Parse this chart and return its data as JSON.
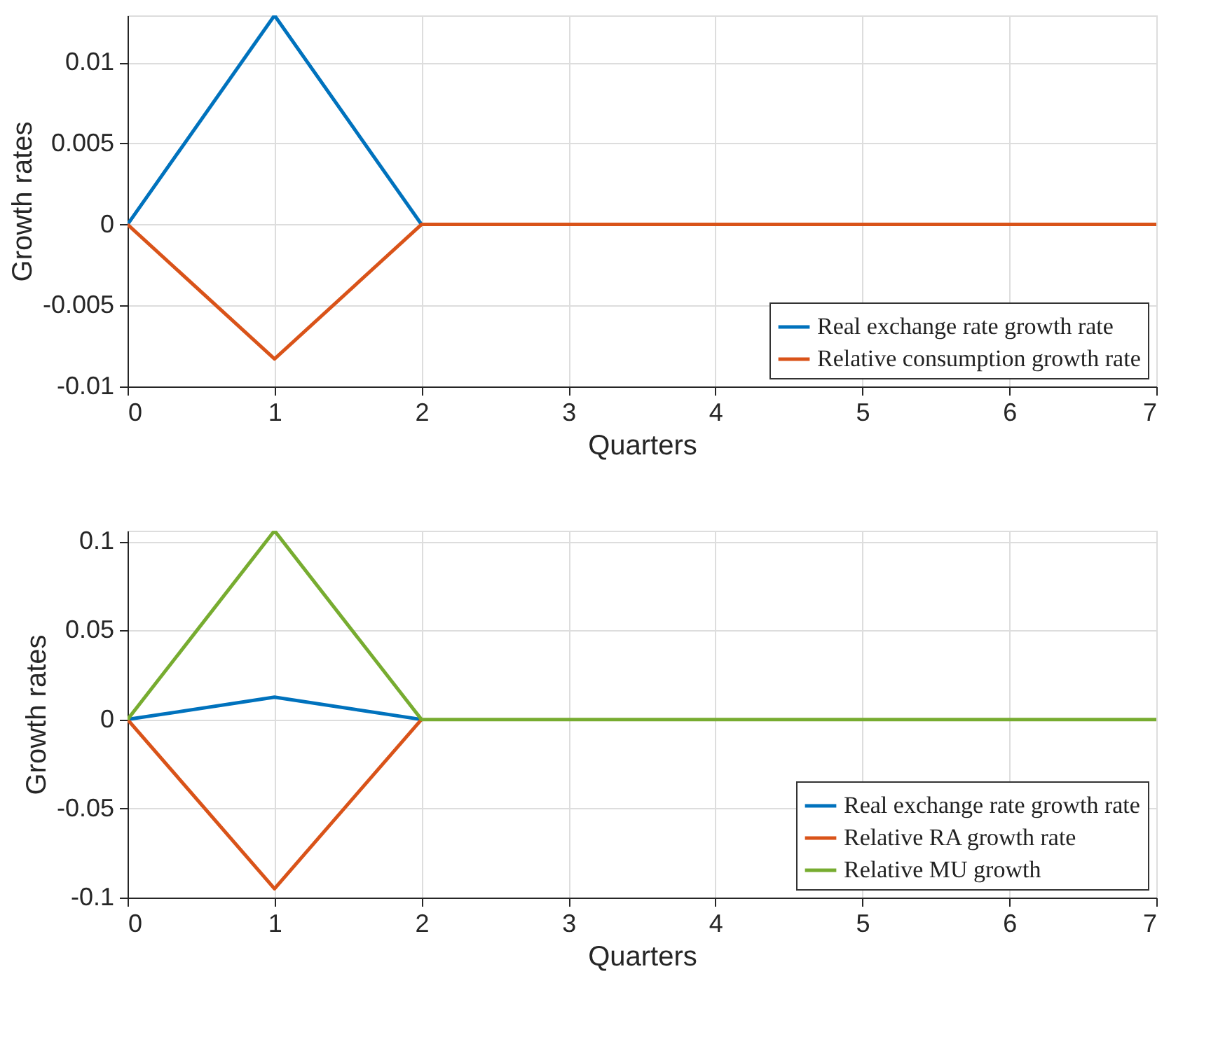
{
  "chart_data": [
    {
      "type": "line",
      "xlabel": "Quarters",
      "ylabel": "Growth rates",
      "x": [
        0,
        1,
        2,
        3,
        4,
        5,
        6,
        7
      ],
      "xlim": [
        0,
        7
      ],
      "xticks": [
        0,
        1,
        2,
        3,
        4,
        5,
        6,
        7
      ],
      "ylim": [
        -0.01,
        0.0129
      ],
      "yticks": [
        -0.01,
        -0.005,
        0,
        0.005,
        0.01
      ],
      "grid": true,
      "legend": "bottom right",
      "line_style": "solid",
      "series": [
        {
          "name": "Real exchange rate growth rate",
          "color": "#0072bd",
          "values": [
            0,
            0.0129,
            0,
            null,
            null,
            null,
            null,
            null
          ]
        },
        {
          "name": "Relative consumption growth rate",
          "color": "#d95319",
          "values": [
            0,
            -0.0083,
            0,
            0,
            0,
            0,
            0,
            0
          ]
        }
      ]
    },
    {
      "type": "line",
      "xlabel": "Quarters",
      "ylabel": "Growth rates",
      "x": [
        0,
        1,
        2,
        3,
        4,
        5,
        6,
        7
      ],
      "xlim": [
        0,
        7
      ],
      "xticks": [
        0,
        1,
        2,
        3,
        4,
        5,
        6,
        7
      ],
      "ylim": [
        -0.1,
        0.106
      ],
      "yticks": [
        -0.1,
        -0.05,
        0,
        0.05,
        0.1
      ],
      "grid": true,
      "legend": "bottom right",
      "line_style": "solid",
      "series": [
        {
          "name": "Real exchange rate growth rate",
          "color": "#0072bd",
          "values": [
            0,
            0.0125,
            0,
            null,
            null,
            null,
            null,
            null
          ]
        },
        {
          "name": "Relative RA growth rate",
          "color": "#d95319",
          "values": [
            0,
            -0.095,
            0,
            null,
            null,
            null,
            null,
            null
          ]
        },
        {
          "name": "Relative MU growth",
          "color": "#77ac30",
          "values": [
            0,
            0.106,
            0,
            0,
            0,
            0,
            0,
            0
          ]
        }
      ]
    }
  ]
}
